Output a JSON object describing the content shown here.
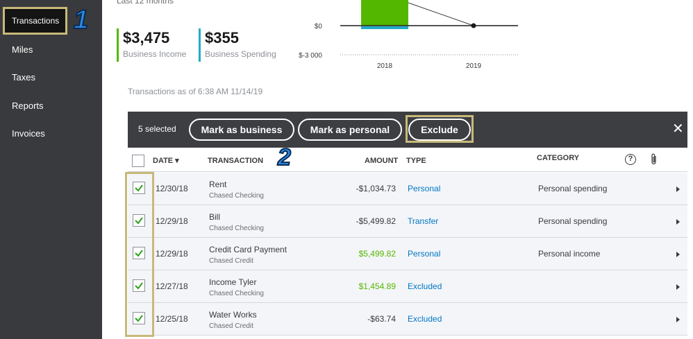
{
  "sidebar": {
    "items": [
      {
        "label": "Transactions"
      },
      {
        "label": "Miles"
      },
      {
        "label": "Taxes"
      },
      {
        "label": "Reports"
      },
      {
        "label": "Invoices"
      }
    ],
    "step_marker": "1"
  },
  "summary": {
    "period": "Last 12 months",
    "income_amount": "$3,475",
    "income_label": "Business Income",
    "spending_amount": "$355",
    "spending_label": "Business Spending",
    "income_color": "#53b700",
    "spending_color": "#21abc7"
  },
  "chart_data": {
    "type": "bar",
    "categories": [
      "2018",
      "2019"
    ],
    "y_tick_labels": [
      "$0",
      "$-3 000"
    ]
  },
  "as_of": "Transactions as of 6:38 AM 11/14/19",
  "actionbar": {
    "selected": "5 selected",
    "mark_business": "Mark as business",
    "mark_personal": "Mark as personal",
    "exclude": "Exclude",
    "close": "✕"
  },
  "table": {
    "headers": {
      "date": "DATE ▾",
      "transaction": "TRANSACTION",
      "amount": "AMOUNT",
      "type": "TYPE",
      "category": "CATEGORY",
      "help": "?"
    },
    "step_marker": "2",
    "rows": [
      {
        "date": "12/30/18",
        "desc": "Rent",
        "account": "Chased Checking",
        "amount": "-$1,034.73",
        "type": "Personal",
        "category": "Personal spending",
        "checked": true
      },
      {
        "date": "12/29/18",
        "desc": "Bill",
        "account": "Chased Checking",
        "amount": "-$5,499.82",
        "type": "Transfer",
        "category": "Personal spending",
        "checked": true
      },
      {
        "date": "12/29/18",
        "desc": "Credit Card Payment",
        "account": "Chased Credit",
        "amount": "$5,499.82",
        "type": "Personal",
        "category": "Personal income",
        "checked": true
      },
      {
        "date": "12/27/18",
        "desc": "Income Tyler",
        "account": "Chased Checking",
        "amount": "$1,454.89",
        "type": "Excluded",
        "category": "",
        "checked": true
      },
      {
        "date": "12/25/18",
        "desc": "Water Works",
        "account": "Chased Credit",
        "amount": "-$63.74",
        "type": "Excluded",
        "category": "",
        "checked": true
      }
    ]
  }
}
